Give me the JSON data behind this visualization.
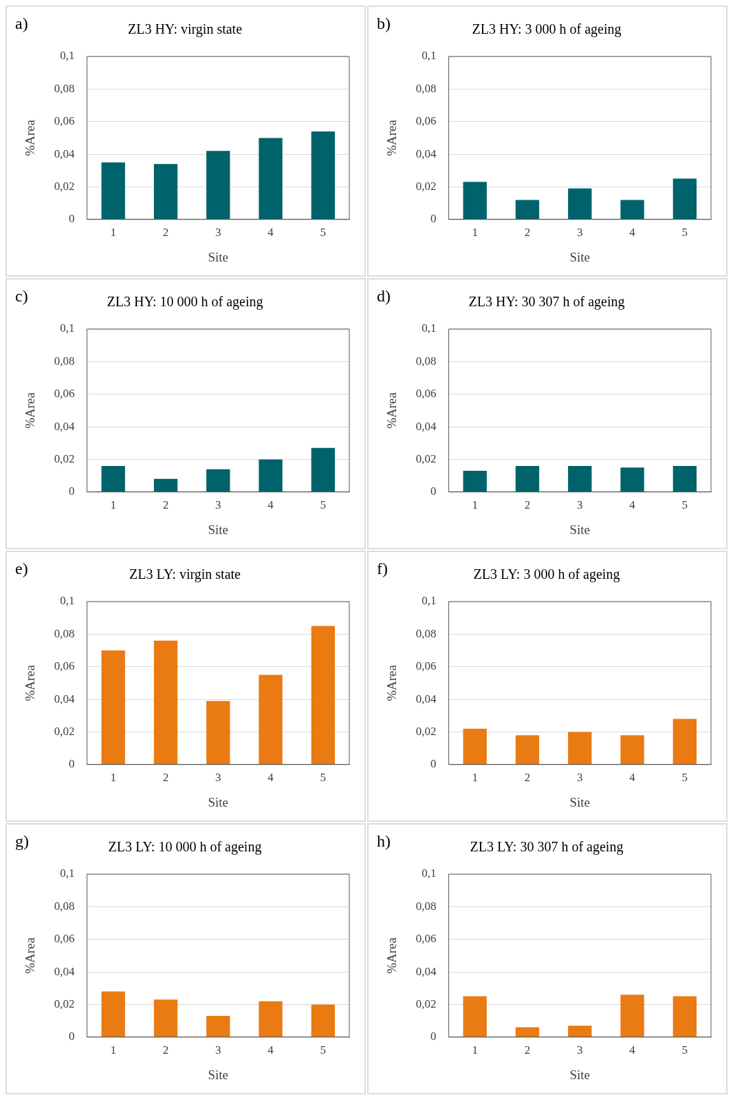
{
  "chart_data": [
    {
      "type": "bar",
      "title": "ZL3 HY: virgin state",
      "annotations": [
        "a)"
      ],
      "xlabel": "Site",
      "ylabel": "%Area",
      "categories": [
        "1",
        "2",
        "3",
        "4",
        "5"
      ],
      "values": [
        0.035,
        0.034,
        0.042,
        0.05,
        0.054
      ],
      "color": "#00626b",
      "ylim": [
        0,
        0.1
      ],
      "yticks": [
        {
          "value": 0,
          "label": "0"
        },
        {
          "value": 0.02,
          "label": "0,02"
        },
        {
          "value": 0.04,
          "label": "0,04"
        },
        {
          "value": 0.06,
          "label": "0,06"
        },
        {
          "value": 0.08,
          "label": "0,08"
        },
        {
          "value": 0.1,
          "label": "0,1"
        }
      ],
      "grid": "y"
    },
    {
      "type": "bar",
      "title": "ZL3 HY: 3 000 h of ageing",
      "annotations": [
        "b)"
      ],
      "xlabel": "Site",
      "ylabel": "%Area",
      "categories": [
        "1",
        "2",
        "3",
        "4",
        "5"
      ],
      "values": [
        0.023,
        0.012,
        0.019,
        0.012,
        0.025
      ],
      "color": "#00626b",
      "ylim": [
        0,
        0.1
      ],
      "yticks": [
        {
          "value": 0,
          "label": "0"
        },
        {
          "value": 0.02,
          "label": "0,02"
        },
        {
          "value": 0.04,
          "label": "0,04"
        },
        {
          "value": 0.06,
          "label": "0,06"
        },
        {
          "value": 0.08,
          "label": "0,08"
        },
        {
          "value": 0.1,
          "label": "0,1"
        }
      ],
      "grid": "y"
    },
    {
      "type": "bar",
      "title": "ZL3 HY: 10 000 h of ageing",
      "annotations": [
        "c)"
      ],
      "xlabel": "Site",
      "ylabel": "%Area",
      "categories": [
        "1",
        "2",
        "3",
        "4",
        "5"
      ],
      "values": [
        0.016,
        0.008,
        0.014,
        0.02,
        0.027
      ],
      "color": "#00626b",
      "ylim": [
        0,
        0.1
      ],
      "yticks": [
        {
          "value": 0,
          "label": "0"
        },
        {
          "value": 0.02,
          "label": "0,02"
        },
        {
          "value": 0.04,
          "label": "0,04"
        },
        {
          "value": 0.06,
          "label": "0,06"
        },
        {
          "value": 0.08,
          "label": "0,08"
        },
        {
          "value": 0.1,
          "label": "0,1"
        }
      ],
      "grid": "y"
    },
    {
      "type": "bar",
      "title": "ZL3 HY: 30 307 h of ageing",
      "annotations": [
        "d)"
      ],
      "xlabel": "Site",
      "ylabel": "%Area",
      "categories": [
        "1",
        "2",
        "3",
        "4",
        "5"
      ],
      "values": [
        0.013,
        0.016,
        0.016,
        0.015,
        0.016
      ],
      "color": "#00626b",
      "ylim": [
        0,
        0.1
      ],
      "yticks": [
        {
          "value": 0,
          "label": "0"
        },
        {
          "value": 0.02,
          "label": "0,02"
        },
        {
          "value": 0.04,
          "label": "0,04"
        },
        {
          "value": 0.06,
          "label": "0,06"
        },
        {
          "value": 0.08,
          "label": "0,08"
        },
        {
          "value": 0.1,
          "label": "0,1"
        }
      ],
      "grid": "y"
    },
    {
      "type": "bar",
      "title": "ZL3 LY: virgin state",
      "annotations": [
        "e)"
      ],
      "xlabel": "Site",
      "ylabel": "%Area",
      "categories": [
        "1",
        "2",
        "3",
        "4",
        "5"
      ],
      "values": [
        0.07,
        0.076,
        0.039,
        0.055,
        0.085
      ],
      "color": "#ea7a12",
      "ylim": [
        0,
        0.1
      ],
      "yticks": [
        {
          "value": 0,
          "label": "0"
        },
        {
          "value": 0.02,
          "label": "0,02"
        },
        {
          "value": 0.04,
          "label": "0,04"
        },
        {
          "value": 0.06,
          "label": "0,06"
        },
        {
          "value": 0.08,
          "label": "0,08"
        },
        {
          "value": 0.1,
          "label": "0,1"
        }
      ],
      "grid": "y"
    },
    {
      "type": "bar",
      "title": "ZL3 LY: 3 000 h of ageing",
      "annotations": [
        "f)"
      ],
      "xlabel": "Site",
      "ylabel": "%Area",
      "categories": [
        "1",
        "2",
        "3",
        "4",
        "5"
      ],
      "values": [
        0.022,
        0.018,
        0.02,
        0.018,
        0.028
      ],
      "color": "#ea7a12",
      "ylim": [
        0,
        0.1
      ],
      "yticks": [
        {
          "value": 0,
          "label": "0"
        },
        {
          "value": 0.02,
          "label": "0,02"
        },
        {
          "value": 0.04,
          "label": "0,04"
        },
        {
          "value": 0.06,
          "label": "0,06"
        },
        {
          "value": 0.08,
          "label": "0,08"
        },
        {
          "value": 0.1,
          "label": "0,1"
        }
      ],
      "grid": "y"
    },
    {
      "type": "bar",
      "title": "ZL3 LY: 10 000 h of ageing",
      "annotations": [
        "g)"
      ],
      "xlabel": "Site",
      "ylabel": "%Area",
      "categories": [
        "1",
        "2",
        "3",
        "4",
        "5"
      ],
      "values": [
        0.028,
        0.023,
        0.013,
        0.022,
        0.02
      ],
      "color": "#ea7a12",
      "ylim": [
        0,
        0.1
      ],
      "yticks": [
        {
          "value": 0,
          "label": "0"
        },
        {
          "value": 0.02,
          "label": "0,02"
        },
        {
          "value": 0.04,
          "label": "0,04"
        },
        {
          "value": 0.06,
          "label": "0,06"
        },
        {
          "value": 0.08,
          "label": "0,08"
        },
        {
          "value": 0.1,
          "label": "0,1"
        }
      ],
      "grid": "y"
    },
    {
      "type": "bar",
      "title": "ZL3 LY: 30 307 h of ageing",
      "annotations": [
        "h)"
      ],
      "xlabel": "Site",
      "ylabel": "%Area",
      "categories": [
        "1",
        "2",
        "3",
        "4",
        "5"
      ],
      "values": [
        0.025,
        0.006,
        0.007,
        0.026,
        0.025
      ],
      "color": "#ea7a12",
      "ylim": [
        0,
        0.1
      ],
      "yticks": [
        {
          "value": 0,
          "label": "0"
        },
        {
          "value": 0.02,
          "label": "0,02"
        },
        {
          "value": 0.04,
          "label": "0,04"
        },
        {
          "value": 0.06,
          "label": "0,06"
        },
        {
          "value": 0.08,
          "label": "0,08"
        },
        {
          "value": 0.1,
          "label": "0,1"
        }
      ],
      "grid": "y"
    }
  ]
}
